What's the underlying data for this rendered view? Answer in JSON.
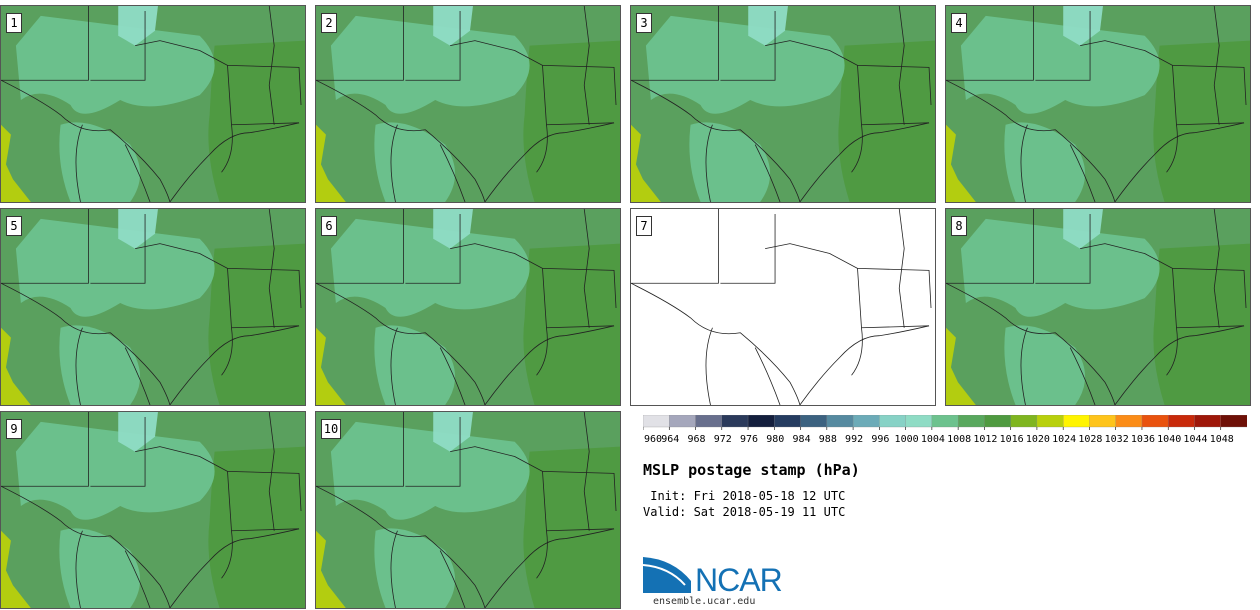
{
  "panels": [
    {
      "label": "1",
      "empty": false
    },
    {
      "label": "2",
      "empty": false
    },
    {
      "label": "3",
      "empty": false
    },
    {
      "label": "4",
      "empty": false
    },
    {
      "label": "5",
      "empty": false
    },
    {
      "label": "6",
      "empty": false
    },
    {
      "label": "7",
      "empty": true
    },
    {
      "label": "8",
      "empty": false
    },
    {
      "label": "9",
      "empty": false
    },
    {
      "label": "10",
      "empty": false
    }
  ],
  "colorbar": {
    "ticks": [
      "960",
      "964",
      "968",
      "972",
      "976",
      "980",
      "984",
      "988",
      "992",
      "996",
      "1000",
      "1004",
      "1008",
      "1012",
      "1016",
      "1020",
      "1024",
      "1028",
      "1032",
      "1036",
      "1040",
      "1044",
      "1048"
    ],
    "colors": [
      "#e1e1e6",
      "#a5a7bc",
      "#686f8d",
      "#2b3a5b",
      "#141f3d",
      "#253c60",
      "#3c6280",
      "#568aa0",
      "#6cabb8",
      "#87d2c6",
      "#8fdcc5",
      "#6dc28e",
      "#59a85e",
      "#4f9a40",
      "#7fb520",
      "#b8d00c",
      "#fff400",
      "#fec41b",
      "#fb8c17",
      "#e9520e",
      "#c8290a",
      "#9e1709",
      "#6e1007"
    ]
  },
  "title": "MSLP postage stamp (hPa)",
  "init_line": " Init: Fri 2018-05-18 12 UTC",
  "valid_line": "Valid: Sat 2018-05-19 11 UTC",
  "logo_text": "NCAR",
  "site": "ensemble.ucar.edu",
  "colors": {
    "field_main": "#59a85e",
    "field_light": "#6dc28e",
    "field_lighter": "#8fdcc5",
    "field_dark": "#4f9a40",
    "field_lime": "#b8d00c",
    "border": "#222222",
    "logo_blue": "#1471b4"
  }
}
